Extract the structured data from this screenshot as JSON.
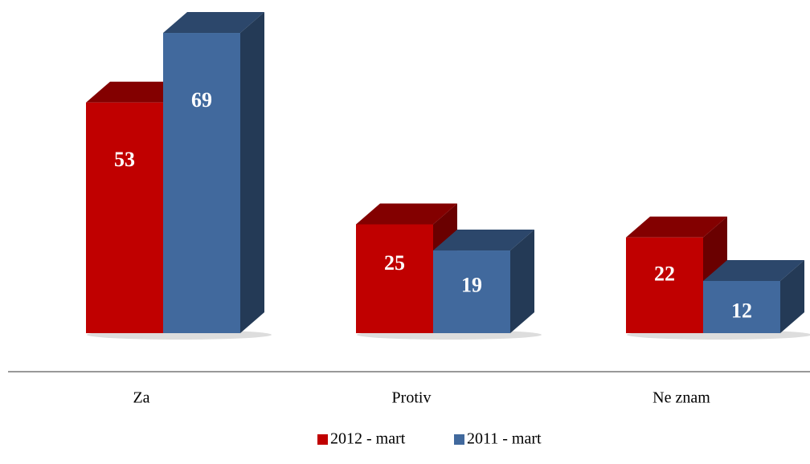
{
  "chart_data": {
    "type": "bar3d",
    "categories": [
      "Za",
      "Protiv",
      "Ne znam"
    ],
    "series": [
      {
        "name": "2012 - mart",
        "color": "#c00000",
        "values": [
          53,
          25,
          22
        ]
      },
      {
        "name": "2011 - mart",
        "color": "#41699d",
        "values": [
          69,
          19,
          12
        ]
      }
    ],
    "legend": "bottom"
  }
}
